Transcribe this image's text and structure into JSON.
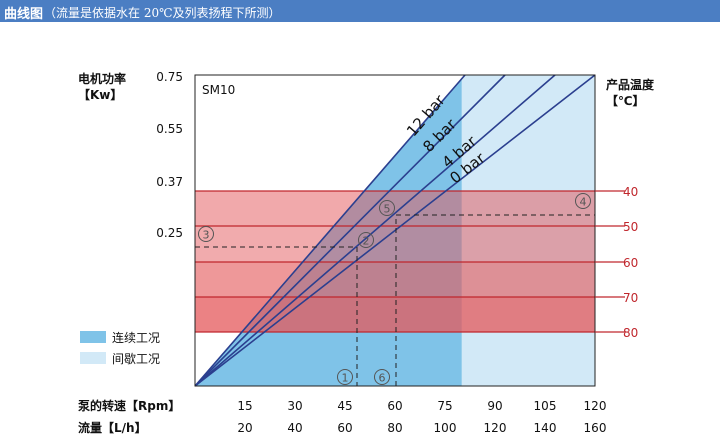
{
  "header": {
    "title": "曲线图",
    "note": "（流量是依据水在 20℃及列表扬程下所测）"
  },
  "chart_data": {
    "type": "line",
    "model": "SM10",
    "y_left_label_1": "电机功率",
    "y_left_label_2": "【Kw】",
    "y_left_ticks": [
      "0.75",
      "0.55",
      "0.37",
      "0.25"
    ],
    "y_right_label_1": "产品温度",
    "y_right_label_2": "【℃】",
    "y_right_ticks": [
      "40",
      "50",
      "60",
      "70",
      "80"
    ],
    "x_label_rpm": "泵的转速【Rpm】",
    "x_label_flow": "流量【L/h】",
    "x_ticks_rpm": [
      "15",
      "30",
      "45",
      "60",
      "75",
      "90",
      "105",
      "120"
    ],
    "x_ticks_flow": [
      "20",
      "40",
      "60",
      "80",
      "100",
      "120",
      "140",
      "160"
    ],
    "x_range_rpm": [
      0,
      120
    ],
    "pressure_lines": [
      {
        "label": "12 bar",
        "rpm_at_top": 81
      },
      {
        "label": "8 bar",
        "rpm_at_top": 93
      },
      {
        "label": "4 bar",
        "rpm_at_top": 108
      },
      {
        "label": "0 bar",
        "rpm_at_top": 120
      }
    ],
    "continuous_limit_rpm": 80,
    "markers": [
      "①",
      "②",
      "③",
      "④",
      "⑤",
      "⑥"
    ],
    "legend": [
      {
        "label": "连续工况",
        "color": "#7fc3e8"
      },
      {
        "label": "间歇工况",
        "color": "#d2e9f7"
      }
    ],
    "colors": {
      "continuous": "#7fc3e8",
      "intermittent": "#d2e9f7",
      "temp_band": "#e4585b",
      "pressure_line": "#2b3f8f"
    }
  }
}
